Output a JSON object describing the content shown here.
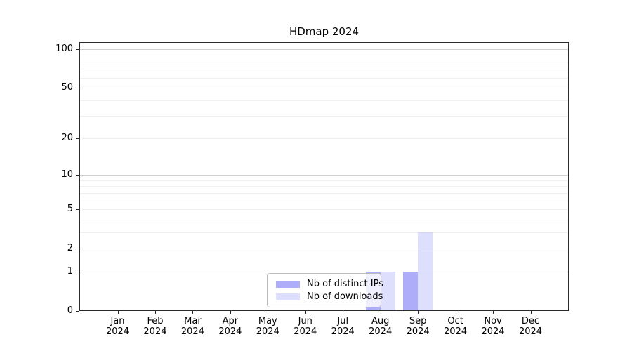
{
  "chart_data": {
    "type": "bar",
    "title": "HDmap 2024",
    "categories": [
      "Jan 2024",
      "Feb 2024",
      "Mar 2024",
      "Apr 2024",
      "May 2024",
      "Jun 2024",
      "Jul 2024",
      "Aug 2024",
      "Sep 2024",
      "Oct 2024",
      "Nov 2024",
      "Dec 2024"
    ],
    "series": [
      {
        "name": "Nb of distinct IPs",
        "color": "#5c5cf6",
        "alpha": 0.5,
        "values": [
          0,
          0,
          0,
          0,
          0,
          0,
          0,
          1,
          1,
          0,
          0,
          0
        ]
      },
      {
        "name": "Nb of downloads",
        "color": "#5c5cf6",
        "alpha": 0.2,
        "values": [
          0,
          0,
          0,
          0,
          0,
          0,
          0,
          1,
          3,
          0,
          0,
          0
        ]
      }
    ],
    "xlabel": "",
    "ylabel": "",
    "y_scale": "log1p",
    "ylim": [
      0,
      100
    ],
    "y_ticks": [
      0,
      1,
      2,
      5,
      10,
      20,
      50,
      100
    ],
    "y_minor_gridlines": [
      3,
      4,
      6,
      7,
      8,
      9,
      30,
      40,
      60,
      70,
      80,
      90
    ],
    "y_decade_gridlines": [
      1,
      10,
      100
    ],
    "grid": true,
    "legend_position": "lower-center"
  },
  "colors": {
    "grid_minor": "#f0f0f0",
    "grid_major": "#cfcfcf",
    "axis": "#2b2b2b",
    "legend_border": "#bbbbbb",
    "background": "#ffffff"
  }
}
